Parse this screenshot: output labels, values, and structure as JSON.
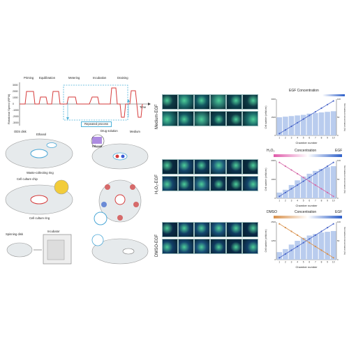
{
  "protocol": {
    "ylabel": "Rotational Speed (RPM)",
    "yticks": [
      "3000",
      "2000",
      "1000",
      "0",
      "-1000",
      "-2000",
      "-3000"
    ],
    "phases": [
      "Priming",
      "Equilibration",
      "Metering",
      "Incubation",
      "Draining"
    ],
    "time_label": "Time",
    "repeat_label": "Repeated process"
  },
  "setup": {
    "ods_disk": "ODS disk",
    "ethanol": "Ethanol",
    "drug_solution": "Drug solution",
    "medium": "Medium",
    "ethanol2": "Ethanol",
    "waste_ring": "Waste-collecting ring",
    "cell_culture_chip": "Cell culture chip",
    "cell_culture_ring": "Cell culture ring",
    "spinning_disk": "Spinning disk",
    "incubator": "Incubator"
  },
  "rows": [
    {
      "label": "Medium-EGF"
    },
    {
      "label": "H₂O₂-EGF"
    },
    {
      "label": "DMSO-EGF"
    }
  ],
  "charts_text": {
    "egf_title": "EGF Concentration",
    "h2o2": "H₂O₂",
    "concentration": "Concentration",
    "egf": "EGF",
    "dmso": "DMSO",
    "ylabel": "Cell number (cells/cm²)",
    "ylabel2": "Normalized concentration (%)",
    "xlabel": "Chamber number"
  },
  "colors": {
    "bar": "#b9ccee",
    "line_blue": "#4a66c9",
    "line_pink": "#d66aa8",
    "line_orange": "#d9904a",
    "micro_bg": "#0b2a3a"
  },
  "chart_data": [
    {
      "type": "bar",
      "title": "EGF Concentration",
      "xlabel": "Chamber number",
      "ylabel": "Cell number (cells/cm²)",
      "categories": [
        "1",
        "2",
        "3",
        "4",
        "5",
        "6",
        "7",
        "8",
        "9",
        "10"
      ],
      "series": [
        {
          "name": "cells",
          "values": [
            1500,
            1550,
            1600,
            1650,
            1700,
            1800,
            1850,
            1900,
            1950,
            2000
          ]
        },
        {
          "name": "EGF",
          "values": [
            5,
            15,
            25,
            35,
            45,
            55,
            65,
            75,
            85,
            95
          ]
        }
      ],
      "ylim": [
        0,
        3000
      ],
      "y2lim": [
        0,
        100
      ]
    },
    {
      "type": "bar",
      "xlabel": "Chamber number",
      "ylabel": "Cell number (cells/cm²)",
      "categories": [
        "1",
        "2",
        "3",
        "4",
        "5",
        "6",
        "7",
        "8",
        "9",
        "10"
      ],
      "series": [
        {
          "name": "cells",
          "values": [
            300,
            450,
            700,
            950,
            1150,
            1300,
            1450,
            1550,
            1650,
            1700
          ]
        },
        {
          "name": "H₂O₂",
          "values": [
            95,
            85,
            75,
            65,
            55,
            45,
            35,
            25,
            15,
            5
          ]
        },
        {
          "name": "EGF",
          "values": [
            5,
            15,
            25,
            35,
            45,
            55,
            65,
            75,
            85,
            95
          ]
        }
      ],
      "ylim": [
        0,
        2000
      ],
      "y2lim": [
        0,
        100
      ]
    },
    {
      "type": "bar",
      "xlabel": "Chamber number",
      "ylabel": "Cell number (cells/cm²)",
      "categories": [
        "1",
        "2",
        "3",
        "4",
        "5",
        "6",
        "7",
        "8",
        "9",
        "10"
      ],
      "series": [
        {
          "name": "cells",
          "values": [
            500,
            700,
            1000,
            1250,
            1450,
            1600,
            1700,
            1800,
            1850,
            1900
          ]
        },
        {
          "name": "DMSO",
          "values": [
            95,
            85,
            75,
            65,
            55,
            45,
            35,
            25,
            15,
            5
          ]
        },
        {
          "name": "EGF",
          "values": [
            5,
            15,
            25,
            35,
            45,
            55,
            65,
            75,
            85,
            95
          ]
        }
      ],
      "ylim": [
        0,
        2500
      ],
      "y2lim": [
        0,
        100
      ]
    }
  ]
}
